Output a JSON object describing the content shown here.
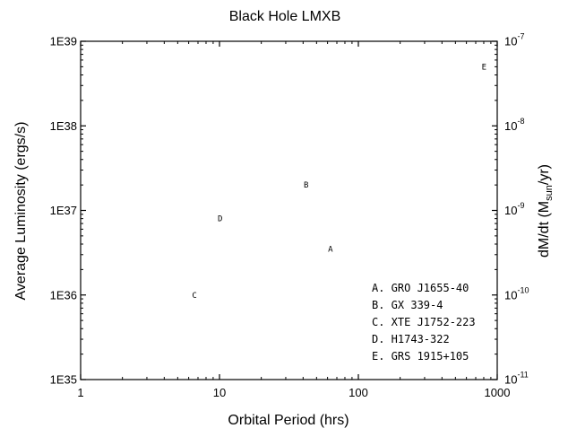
{
  "chart_data": {
    "type": "scatter",
    "title": "Black Hole LMXB",
    "xlabel": "Orbital Period (hrs)",
    "ylabel": "Average Luminosity (ergs/s)",
    "y2label": {
      "main": "dM/dt (M",
      "sub": "sun",
      "tail": "/yr)"
    },
    "x_scale": "log",
    "y_scale": "log",
    "y2_scale": "log",
    "xlim": [
      1,
      1000
    ],
    "ylim": [
      1e+35,
      1e+39
    ],
    "y2lim": [
      1e-11,
      1e-07
    ],
    "grid": false,
    "x_ticks": [
      {
        "value": 1,
        "label": "1"
      },
      {
        "value": 10,
        "label": "10"
      },
      {
        "value": 100,
        "label": "100"
      },
      {
        "value": 1000,
        "label": "1000"
      }
    ],
    "y_ticks": [
      {
        "value": 1e+35,
        "label": "1E35"
      },
      {
        "value": 1e+36,
        "label": "1E36"
      },
      {
        "value": 1e+37,
        "label": "1E37"
      },
      {
        "value": 1e+38,
        "label": "1E38"
      },
      {
        "value": 1e+39,
        "label": "1E39"
      }
    ],
    "y2_ticks": [
      {
        "value": 1e-11,
        "base": "10",
        "exp": "-11"
      },
      {
        "value": 1e-10,
        "base": "10",
        "exp": "-10"
      },
      {
        "value": 1e-09,
        "base": "10",
        "exp": "-9"
      },
      {
        "value": 1e-08,
        "base": "10",
        "exp": "-8"
      },
      {
        "value": 1e-07,
        "base": "10",
        "exp": "-7"
      }
    ],
    "points": [
      {
        "label": "A",
        "x": 62.9,
        "y": 3.5e+36
      },
      {
        "label": "B",
        "x": 42.1,
        "y": 2e+37
      },
      {
        "label": "C",
        "x": 6.6,
        "y": 1e+36
      },
      {
        "label": "D",
        "x": 10.1,
        "y": 8e+36
      },
      {
        "label": "E",
        "x": 804,
        "y": 5e+38
      }
    ],
    "legend": {
      "position": "bottom-right",
      "entries": [
        "A. GRO J1655-40",
        "B. GX 339-4",
        "C. XTE J1752-223",
        "D. H1743-322",
        "E. GRS 1915+105"
      ]
    }
  }
}
